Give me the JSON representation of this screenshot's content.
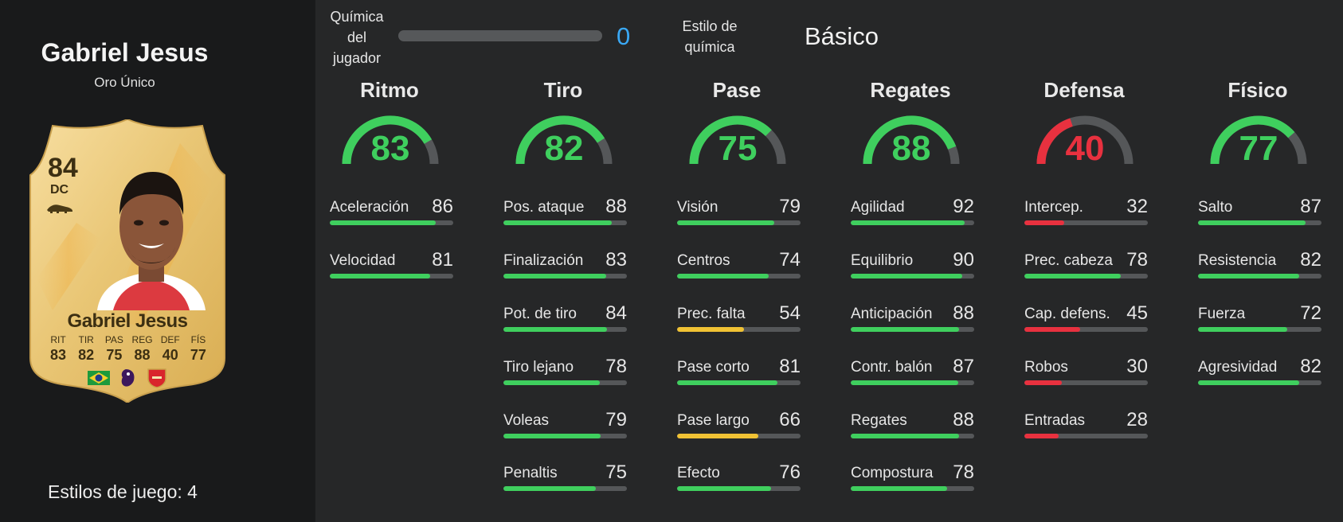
{
  "player": {
    "name": "Gabriel Jesus",
    "card_type": "Oro Único",
    "playstyles": "Estilos de juego: 4"
  },
  "card": {
    "rating": "84",
    "position": "DC",
    "name": "Gabriel Jesus",
    "stats": [
      {
        "label": "RIT",
        "value": "83"
      },
      {
        "label": "TIR",
        "value": "82"
      },
      {
        "label": "PAS",
        "value": "75"
      },
      {
        "label": "REG",
        "value": "88"
      },
      {
        "label": "DEF",
        "value": "40"
      },
      {
        "label": "FÍS",
        "value": "77"
      }
    ],
    "badges": [
      "brazil-flag-icon",
      "premier-league-icon",
      "arsenal-crest-icon"
    ]
  },
  "chemistry": {
    "label": "Química del jugador",
    "value": "0",
    "fill_fraction": 0,
    "style_label": "Estilo de química",
    "style_value": "Básico"
  },
  "colors": {
    "green": "#3fcf5e",
    "yellow": "#f0c234",
    "red": "#e8313f",
    "track": "#555759",
    "blue": "#3aa8f4"
  },
  "categories": [
    {
      "title": "Ritmo",
      "value": "83",
      "color": "#3fcf5e",
      "stats": [
        {
          "name": "Aceleración",
          "value": "86",
          "color": "#3fcf5e"
        },
        {
          "name": "Velocidad",
          "value": "81",
          "color": "#3fcf5e"
        }
      ]
    },
    {
      "title": "Tiro",
      "value": "82",
      "color": "#3fcf5e",
      "stats": [
        {
          "name": "Pos. ataque",
          "value": "88",
          "color": "#3fcf5e"
        },
        {
          "name": "Finalización",
          "value": "83",
          "color": "#3fcf5e"
        },
        {
          "name": "Pot. de tiro",
          "value": "84",
          "color": "#3fcf5e"
        },
        {
          "name": "Tiro lejano",
          "value": "78",
          "color": "#3fcf5e"
        },
        {
          "name": "Voleas",
          "value": "79",
          "color": "#3fcf5e"
        },
        {
          "name": "Penaltis",
          "value": "75",
          "color": "#3fcf5e"
        }
      ]
    },
    {
      "title": "Pase",
      "value": "75",
      "color": "#3fcf5e",
      "stats": [
        {
          "name": "Visión",
          "value": "79",
          "color": "#3fcf5e"
        },
        {
          "name": "Centros",
          "value": "74",
          "color": "#3fcf5e"
        },
        {
          "name": "Prec. falta",
          "value": "54",
          "color": "#f0c234"
        },
        {
          "name": "Pase corto",
          "value": "81",
          "color": "#3fcf5e"
        },
        {
          "name": "Pase largo",
          "value": "66",
          "color": "#f0c234"
        },
        {
          "name": "Efecto",
          "value": "76",
          "color": "#3fcf5e"
        }
      ]
    },
    {
      "title": "Regates",
      "value": "88",
      "color": "#3fcf5e",
      "stats": [
        {
          "name": "Agilidad",
          "value": "92",
          "color": "#3fcf5e"
        },
        {
          "name": "Equilibrio",
          "value": "90",
          "color": "#3fcf5e"
        },
        {
          "name": "Anticipación",
          "value": "88",
          "color": "#3fcf5e"
        },
        {
          "name": "Contr. balón",
          "value": "87",
          "color": "#3fcf5e"
        },
        {
          "name": "Regates",
          "value": "88",
          "color": "#3fcf5e"
        },
        {
          "name": "Compostura",
          "value": "78",
          "color": "#3fcf5e"
        }
      ]
    },
    {
      "title": "Defensa",
      "value": "40",
      "color": "#e8313f",
      "stats": [
        {
          "name": "Intercep.",
          "value": "32",
          "color": "#e8313f"
        },
        {
          "name": "Prec. cabeza",
          "value": "78",
          "color": "#3fcf5e"
        },
        {
          "name": "Cap. defens.",
          "value": "45",
          "color": "#e8313f"
        },
        {
          "name": "Robos",
          "value": "30",
          "color": "#e8313f"
        },
        {
          "name": "Entradas",
          "value": "28",
          "color": "#e8313f"
        }
      ]
    },
    {
      "title": "Físico",
      "value": "77",
      "color": "#3fcf5e",
      "stats": [
        {
          "name": "Salto",
          "value": "87",
          "color": "#3fcf5e"
        },
        {
          "name": "Resistencia",
          "value": "82",
          "color": "#3fcf5e"
        },
        {
          "name": "Fuerza",
          "value": "72",
          "color": "#3fcf5e"
        },
        {
          "name": "Agresividad",
          "value": "82",
          "color": "#3fcf5e"
        }
      ]
    }
  ]
}
